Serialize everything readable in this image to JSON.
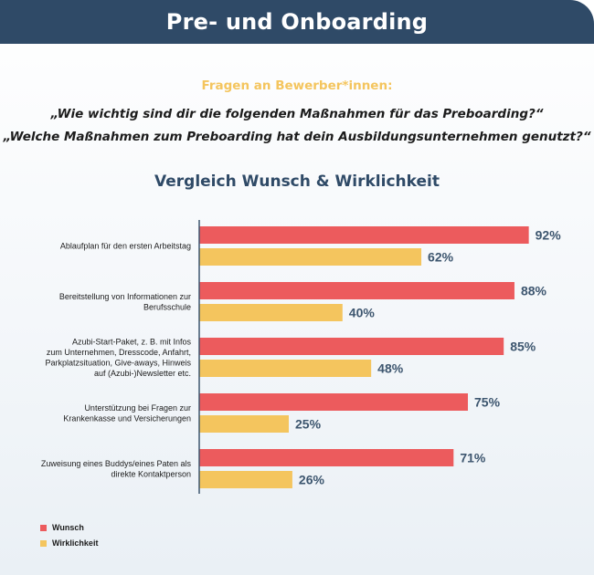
{
  "header": {
    "title": "Pre- und Onboarding"
  },
  "questions": {
    "label": "Fragen an Bewerber*innen:",
    "line1": "„Wie wichtig sind dir die folgenden Maßnahmen für das Preboarding?“",
    "line2": "„Welche Maßnahmen zum Preboarding hat dein Ausbildungsunternehmen genutzt?“"
  },
  "colors": {
    "wunsch": "#ec5b5d",
    "wirklichkeit": "#f4c55e",
    "value_text": "#3d566f",
    "axis": "#3d566f"
  },
  "chart_data": {
    "type": "bar",
    "orientation": "horizontal",
    "title": "Vergleich Wunsch & Wirklichkeit",
    "categories": [
      [
        "Ablaufplan für den ersten Arbeitstag"
      ],
      [
        "Bereitstellung von Informationen zur",
        "Berufsschule"
      ],
      [
        "Azubi-Start-Paket, z. B. mit Infos",
        "zum Unternehmen, Dresscode, Anfahrt,",
        "Parkplatzsituation, Give-aways, Hinweis",
        "auf (Azubi-)Newsletter etc."
      ],
      [
        "Unterstützung bei Fragen zur",
        "Krankenkasse und Versicherungen"
      ],
      [
        "Zuweisung eines Buddys/eines Paten als",
        "direkte Kontaktperson"
      ]
    ],
    "series": [
      {
        "name": "Wunsch",
        "values": [
          92,
          88,
          85,
          75,
          71
        ],
        "labels": [
          "92%",
          "88%",
          "85%",
          "75%",
          "71%"
        ]
      },
      {
        "name": "Wirklichkeit",
        "values": [
          62,
          40,
          48,
          25,
          26
        ],
        "labels": [
          "62%",
          "40%",
          "48%",
          "25%",
          "26%"
        ]
      }
    ],
    "xlim": [
      0,
      100
    ],
    "legend": "bottom-left"
  }
}
